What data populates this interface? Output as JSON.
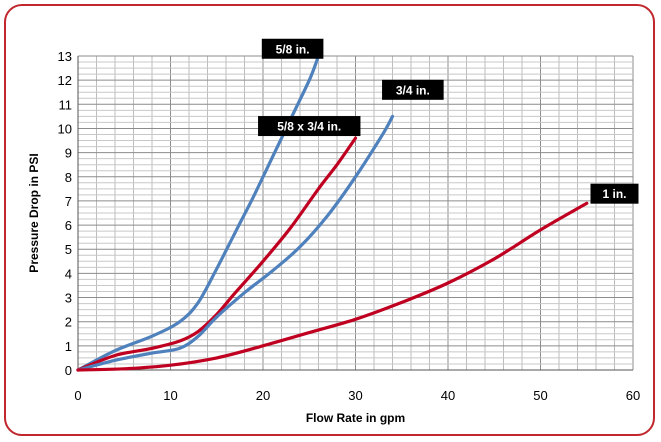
{
  "chart_data": {
    "type": "line",
    "title": "",
    "xlabel": "Flow Rate in gpm",
    "ylabel": "Pressure Drop in PSI",
    "xlim": [
      0,
      60
    ],
    "ylim": [
      0,
      13
    ],
    "x_ticks": [
      0,
      10,
      20,
      30,
      40,
      50,
      60
    ],
    "y_ticks": [
      0,
      1,
      2,
      3,
      4,
      5,
      6,
      7,
      8,
      9,
      10,
      11,
      12,
      13
    ],
    "grid": true,
    "legend": "none",
    "series": [
      {
        "name": "5/8 in.",
        "color": "#4f81bd",
        "x": [
          0,
          4,
          8,
          11,
          13,
          15,
          17,
          19,
          21,
          23,
          25,
          26
        ],
        "y": [
          0,
          0.8,
          1.4,
          2.0,
          2.8,
          4.2,
          5.7,
          7.2,
          8.8,
          10.4,
          12.0,
          13.0
        ]
      },
      {
        "name": "5/8 x 3/4 in.",
        "color": "#c00020",
        "x": [
          0,
          4,
          8,
          11,
          13,
          15,
          17,
          20,
          23,
          26,
          28,
          30
        ],
        "y": [
          0,
          0.6,
          0.9,
          1.2,
          1.6,
          2.3,
          3.2,
          4.5,
          5.9,
          7.5,
          8.5,
          9.6
        ]
      },
      {
        "name": "3/4 in.",
        "color": "#4f81bd",
        "x": [
          0,
          4,
          8,
          11,
          13,
          15,
          18,
          21,
          24,
          27,
          30,
          33,
          34
        ],
        "y": [
          0,
          0.4,
          0.7,
          0.9,
          1.4,
          2.2,
          3.2,
          4.1,
          5.1,
          6.4,
          8.0,
          9.8,
          10.5
        ]
      },
      {
        "name": "1 in.",
        "color": "#c00020",
        "x": [
          0,
          5,
          10,
          15,
          20,
          25,
          30,
          35,
          40,
          45,
          50,
          55
        ],
        "y": [
          0,
          0.05,
          0.2,
          0.5,
          1.0,
          1.55,
          2.1,
          2.8,
          3.6,
          4.6,
          5.8,
          6.9
        ]
      }
    ],
    "annotations": [
      {
        "text": "5/8 in.",
        "x": 23.2,
        "y": 13.3
      },
      {
        "text": "3/4 in.",
        "x": 36.2,
        "y": 11.6
      },
      {
        "text": "5/8 x 3/4 in.",
        "x": 25.0,
        "y": 10.1
      },
      {
        "text": "1 in.",
        "x": 58.0,
        "y": 7.3
      }
    ]
  }
}
